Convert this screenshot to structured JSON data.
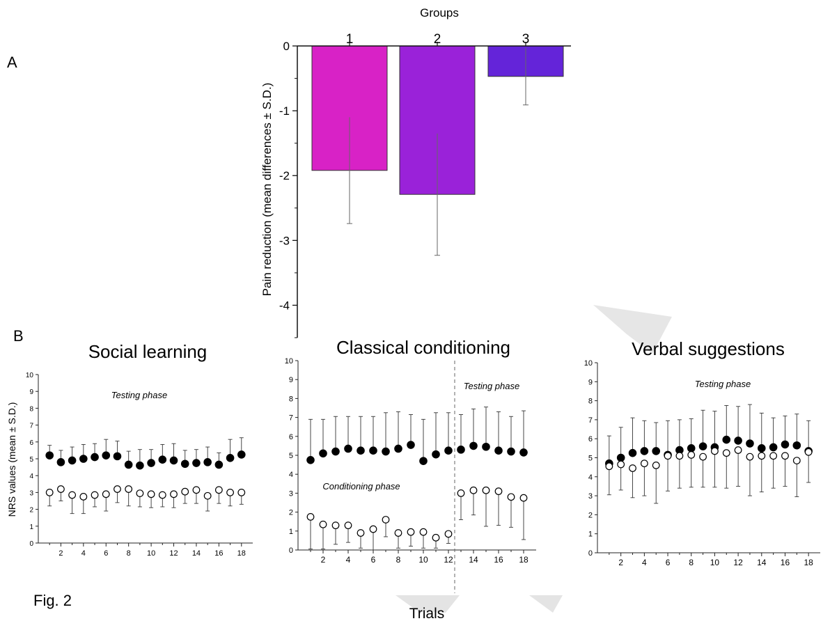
{
  "figure": {
    "panel_a_label": "A",
    "panel_b_label": "B",
    "caption": "Fig. 2",
    "shared_xlabel": "Trials"
  },
  "chart_data": [
    {
      "type": "bar",
      "title": "Groups",
      "categories": [
        "1",
        "2",
        "3"
      ],
      "values": [
        -1.92,
        -2.29,
        -0.47
      ],
      "errors": [
        0.82,
        0.94,
        0.44
      ],
      "colors": [
        "#d822c6",
        "#9a22d9",
        "#6424d9"
      ],
      "xlabel": "",
      "ylabel": "Pain reduction (mean differences ± S.D.)",
      "ylim": [
        -4.5,
        0
      ],
      "yticks": [
        "0",
        "-1",
        "-2",
        "-3",
        "-4"
      ],
      "legend": "none"
    },
    {
      "type": "scatter",
      "title": "Social learning",
      "ylabel": "NRS values (mean ± S.D.)",
      "xlabel": "",
      "xlim": [
        0,
        19
      ],
      "ylim": [
        0,
        10
      ],
      "xticks": [
        "2",
        "4",
        "6",
        "8",
        "10",
        "12",
        "14",
        "16",
        "18"
      ],
      "yticks": [
        "0",
        "1",
        "2",
        "3",
        "4",
        "5",
        "6",
        "7",
        "8",
        "9",
        "10"
      ],
      "annotations": [
        "Testing phase"
      ],
      "series": [
        {
          "marker": "filled",
          "x": [
            1,
            2,
            3,
            4,
            5,
            6,
            7,
            8,
            9,
            10,
            11,
            12,
            13,
            14,
            15,
            16,
            17,
            18
          ],
          "values": [
            5.2,
            4.8,
            4.9,
            5.0,
            5.1,
            5.2,
            5.15,
            4.65,
            4.6,
            4.75,
            4.95,
            4.9,
            4.7,
            4.75,
            4.8,
            4.65,
            5.05,
            5.25
          ],
          "errors": [
            0.6,
            0.7,
            0.8,
            0.85,
            0.8,
            0.95,
            0.9,
            0.8,
            0.95,
            0.8,
            0.9,
            1.0,
            0.8,
            0.8,
            0.9,
            0.7,
            1.1,
            1.0
          ]
        },
        {
          "marker": "open",
          "x": [
            1,
            2,
            3,
            4,
            5,
            6,
            7,
            8,
            9,
            10,
            11,
            12,
            13,
            14,
            15,
            16,
            17,
            18
          ],
          "values": [
            3.0,
            3.2,
            2.85,
            2.75,
            2.85,
            2.9,
            3.2,
            3.2,
            2.95,
            2.9,
            2.85,
            2.9,
            3.05,
            3.15,
            2.8,
            3.15,
            3.0,
            3.0
          ],
          "errors": [
            0.8,
            0.7,
            1.1,
            1.0,
            0.7,
            1.0,
            0.8,
            1.0,
            0.8,
            0.8,
            0.7,
            0.8,
            0.7,
            0.8,
            0.9,
            0.8,
            0.8,
            0.7
          ]
        }
      ]
    },
    {
      "type": "scatter",
      "title": "Classical conditioning",
      "ylabel": "",
      "xlabel": "",
      "xlim": [
        0,
        19
      ],
      "ylim": [
        0,
        10
      ],
      "xticks": [
        "2",
        "4",
        "6",
        "8",
        "10",
        "12",
        "14",
        "16",
        "18"
      ],
      "yticks": [
        "0",
        "1",
        "2",
        "3",
        "4",
        "5",
        "6",
        "7",
        "8",
        "9",
        "10"
      ],
      "divider_x": 12.5,
      "annotations": [
        "Testing phase",
        "Conditioning phase"
      ],
      "series": [
        {
          "marker": "filled",
          "x": [
            1,
            2,
            3,
            4,
            5,
            6,
            7,
            8,
            9,
            10,
            11,
            12,
            13,
            14,
            15,
            16,
            17,
            18
          ],
          "values": [
            4.75,
            5.1,
            5.2,
            5.35,
            5.25,
            5.25,
            5.2,
            5.35,
            5.55,
            4.7,
            5.05,
            5.25,
            5.3,
            5.5,
            5.45,
            5.25,
            5.2,
            5.15
          ],
          "errors": [
            2.15,
            1.8,
            1.85,
            1.7,
            1.8,
            1.8,
            2.05,
            1.95,
            1.6,
            2.2,
            2.2,
            2.0,
            1.85,
            1.95,
            2.1,
            2.05,
            1.85,
            2.2
          ]
        },
        {
          "marker": "open",
          "x": [
            1,
            2,
            3,
            4,
            5,
            6,
            7,
            8,
            9,
            10,
            11,
            12,
            13,
            14,
            15,
            16,
            17,
            18
          ],
          "values": [
            1.75,
            1.35,
            1.3,
            1.3,
            0.9,
            1.1,
            1.6,
            0.9,
            0.95,
            0.95,
            0.65,
            0.85,
            3.0,
            3.15,
            3.15,
            3.1,
            2.8,
            2.75
          ],
          "errors": [
            1.7,
            1.3,
            1.0,
            0.9,
            0.8,
            1.1,
            0.9,
            0.8,
            0.75,
            0.85,
            0.55,
            0.5,
            1.4,
            1.3,
            1.9,
            1.8,
            1.6,
            2.2
          ]
        }
      ]
    },
    {
      "type": "scatter",
      "title": "Verbal suggestions",
      "ylabel": "",
      "xlabel": "",
      "xlim": [
        0,
        19
      ],
      "ylim": [
        0,
        10
      ],
      "xticks": [
        "2",
        "4",
        "6",
        "8",
        "10",
        "12",
        "14",
        "16",
        "18"
      ],
      "yticks": [
        "0",
        "1",
        "2",
        "3",
        "4",
        "5",
        "6",
        "7",
        "8",
        "9",
        "10"
      ],
      "annotations": [
        "Testing phase"
      ],
      "series": [
        {
          "marker": "filled",
          "x": [
            1,
            2,
            3,
            4,
            5,
            6,
            7,
            8,
            9,
            10,
            11,
            12,
            13,
            14,
            15,
            16,
            17,
            18
          ],
          "values": [
            4.7,
            5.0,
            5.25,
            5.35,
            5.35,
            5.15,
            5.4,
            5.5,
            5.6,
            5.55,
            5.95,
            5.9,
            5.75,
            5.5,
            5.55,
            5.7,
            5.65,
            5.35
          ],
          "errors": [
            1.45,
            1.6,
            1.85,
            1.6,
            1.5,
            1.8,
            1.6,
            1.55,
            1.9,
            1.9,
            1.8,
            1.8,
            2.05,
            1.85,
            1.55,
            1.5,
            1.65,
            1.6
          ]
        },
        {
          "marker": "open",
          "x": [
            1,
            2,
            3,
            4,
            5,
            6,
            7,
            8,
            9,
            10,
            11,
            12,
            13,
            14,
            15,
            16,
            17,
            18
          ],
          "values": [
            4.55,
            4.65,
            4.45,
            4.7,
            4.6,
            5.1,
            5.1,
            5.15,
            5.05,
            5.35,
            5.25,
            5.4,
            5.05,
            5.1,
            5.1,
            5.1,
            4.85,
            5.3
          ],
          "errors": [
            1.5,
            1.35,
            1.55,
            1.7,
            2.0,
            1.85,
            1.7,
            1.7,
            1.6,
            1.9,
            1.85,
            1.9,
            2.05,
            1.9,
            1.7,
            1.6,
            1.9,
            1.6
          ]
        }
      ]
    }
  ]
}
